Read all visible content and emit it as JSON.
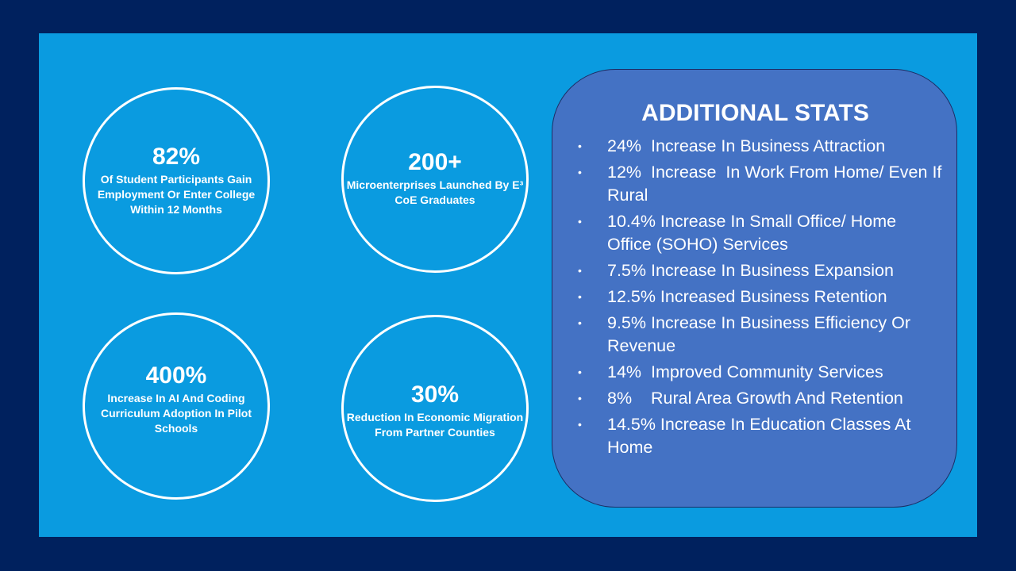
{
  "stats_circles": [
    {
      "value": "82%",
      "text": "Of Student Participants Gain Employment Or Enter College Within 12 Months"
    },
    {
      "value": "200+",
      "text": "Microenterprises Launched By E³ CoE Graduates"
    },
    {
      "value": "400%",
      "text": "Increase In AI And  Coding Curriculum Adoption In Pilot Schools"
    },
    {
      "value": "30%",
      "text": "Reduction In Economic Migration From Partner Counties"
    }
  ],
  "additional": {
    "title": "ADDITIONAL STATS",
    "bullet": "•",
    "items": [
      "24%  Increase In Business Attraction",
      "12%  Increase  In Work From Home/ Even If Rural",
      "10.4% Increase In Small Office/ Home Office (SOHO) Services",
      "7.5% Increase In Business Expansion",
      "12.5% Increased Business Retention",
      "9.5% Increase In Business Efficiency Or Revenue",
      "14%  Improved Community Services",
      "8%    Rural Area Growth And Retention",
      "14.5% Increase In Education Classes At Home"
    ]
  },
  "colors": {
    "outer_background": "#00215e",
    "panel": "#0a9be0",
    "stats_box": "#4472c4",
    "text": "#ffffff"
  }
}
